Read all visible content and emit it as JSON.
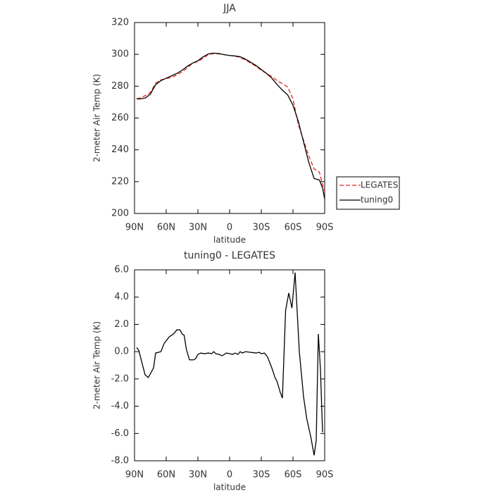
{
  "chart_data": [
    {
      "type": "line",
      "title": "JJA",
      "x_label": "latitude",
      "y_label": "2-meter Air Temp (K)",
      "x": [
        88,
        85,
        80,
        75,
        70,
        65,
        60,
        55,
        50,
        45,
        40,
        35,
        30,
        25,
        20,
        15,
        10,
        5,
        0,
        -5,
        -10,
        -15,
        -20,
        -25,
        -30,
        -35,
        -40,
        -45,
        -50,
        -55,
        -60,
        -65,
        -70,
        -75,
        -80,
        -85,
        -88,
        -90
      ],
      "series": [
        {
          "name": "LEGATES",
          "color": "#e8231f",
          "dash": true,
          "values": [
            272,
            272.5,
            274,
            276,
            282,
            284,
            284.8,
            285.5,
            287,
            289,
            291.5,
            294.5,
            295.5,
            297.5,
            300,
            300.5,
            300.3,
            299.8,
            299.3,
            299,
            298,
            296.5,
            294.5,
            292.5,
            290,
            288,
            286,
            283.5,
            281.5,
            279.5,
            272,
            256,
            246,
            236,
            228,
            226,
            218,
            214
          ]
        },
        {
          "name": "tuning0",
          "color": "#000000",
          "dash": false,
          "values": [
            272,
            272,
            272.5,
            275,
            281,
            283.5,
            285,
            286.5,
            288,
            290,
            292.5,
            294.5,
            296,
            298.5,
            300.3,
            300.8,
            300.5,
            299.8,
            299.3,
            299,
            298.5,
            297,
            295,
            293,
            290.5,
            288,
            285,
            281,
            277.5,
            274.5,
            268,
            258,
            245,
            232,
            222,
            221,
            216,
            209
          ]
        }
      ],
      "xlim": [
        90,
        -90
      ],
      "xticks": [
        {
          "value": 90,
          "label": "90N"
        },
        {
          "value": 60,
          "label": "60N"
        },
        {
          "value": 30,
          "label": "30N"
        },
        0,
        {
          "value": -30,
          "label": "30S"
        },
        {
          "value": -60,
          "label": "60S"
        },
        {
          "value": -90,
          "label": "90S"
        }
      ],
      "ylim": [
        200,
        320
      ],
      "yticks": [
        200,
        220,
        240,
        260,
        280,
        300,
        320
      ],
      "legend": "right"
    },
    {
      "type": "line",
      "title": "tuning0 - LEGATES",
      "x_label": "latitude",
      "y_label": "2-meter Air Temp (K)",
      "x": [
        88,
        86,
        80,
        77,
        72,
        70,
        65,
        62,
        60,
        57,
        53,
        50,
        47,
        45,
        43,
        41,
        38,
        34,
        32,
        30,
        27,
        24,
        20,
        17,
        15,
        13,
        10,
        7,
        5,
        3,
        0,
        -3,
        -5,
        -8,
        -10,
        -12,
        -15,
        -20,
        -25,
        -28,
        -30,
        -33,
        -36,
        -40,
        -43,
        -45,
        -48,
        -50,
        -53,
        -56,
        -59,
        -62,
        -66,
        -70,
        -73,
        -77,
        -80,
        -82,
        -84,
        -86,
        -88
      ],
      "values": [
        0.3,
        0.1,
        -1.7,
        -1.9,
        -1.2,
        -0.1,
        0.0,
        0.6,
        0.8,
        1.1,
        1.3,
        1.6,
        1.6,
        1.3,
        1.2,
        0.2,
        -0.6,
        -0.6,
        -0.5,
        -0.2,
        -0.1,
        -0.15,
        -0.1,
        -0.15,
        0.0,
        -0.15,
        -0.2,
        -0.3,
        -0.2,
        -0.1,
        -0.15,
        -0.2,
        -0.1,
        -0.2,
        0.0,
        -0.1,
        0.0,
        -0.05,
        -0.1,
        -0.05,
        -0.15,
        -0.1,
        -0.4,
        -1.2,
        -1.9,
        -2.2,
        -3.0,
        -3.4,
        3.0,
        4.3,
        3.2,
        5.8,
        0.0,
        -3.3,
        -4.9,
        -6.3,
        -7.6,
        -6.5,
        1.3,
        -1.3,
        -5.9
      ],
      "color": "#000000",
      "xlim": [
        90,
        -90
      ],
      "xticks": [
        {
          "value": 90,
          "label": "90N"
        },
        {
          "value": 60,
          "label": "60N"
        },
        {
          "value": 30,
          "label": "30N"
        },
        0,
        {
          "value": -30,
          "label": "30S"
        },
        {
          "value": -60,
          "label": "60S"
        },
        {
          "value": -90,
          "label": "90S"
        }
      ],
      "ylim": [
        -8,
        6
      ],
      "yticks": [
        {
          "value": -8,
          "label": "-8.0"
        },
        {
          "value": -6,
          "label": "-6.0"
        },
        {
          "value": -4,
          "label": "-4.0"
        },
        {
          "value": -2,
          "label": "-2.0"
        },
        {
          "value": 0,
          "label": "0.0"
        },
        {
          "value": 2,
          "label": "2.0"
        },
        {
          "value": 4,
          "label": "4.0"
        },
        {
          "value": 6,
          "label": "6.0"
        }
      ]
    }
  ]
}
